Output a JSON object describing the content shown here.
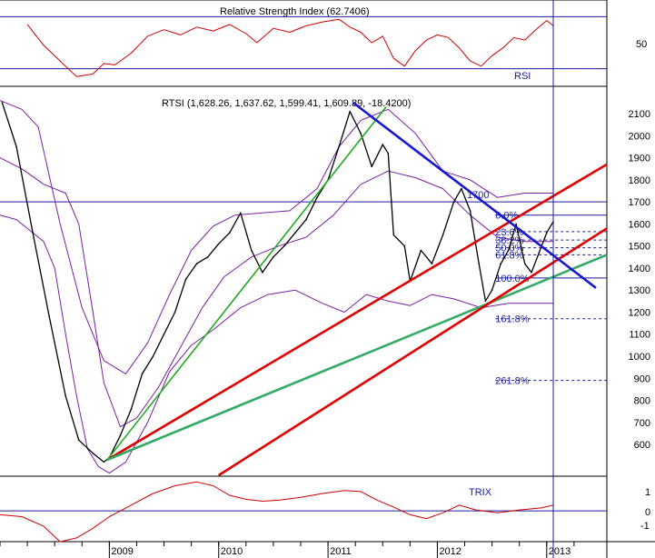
{
  "chart_data": {
    "type": "line",
    "rsi_panel": {
      "title": "Relative Strength Index (62.7406)",
      "label": "RSI",
      "ticks": [
        {
          "value": 50,
          "label": "50"
        }
      ],
      "levels": [
        70,
        30
      ],
      "ylim": [
        20,
        80
      ],
      "series": [
        {
          "x": 2008.25,
          "y": 64
        },
        {
          "x": 2008.4,
          "y": 48
        },
        {
          "x": 2008.55,
          "y": 36
        },
        {
          "x": 2008.7,
          "y": 24
        },
        {
          "x": 2008.85,
          "y": 26
        },
        {
          "x": 2008.95,
          "y": 34
        },
        {
          "x": 2009.05,
          "y": 33
        },
        {
          "x": 2009.2,
          "y": 42
        },
        {
          "x": 2009.35,
          "y": 55
        },
        {
          "x": 2009.5,
          "y": 60
        },
        {
          "x": 2009.65,
          "y": 56
        },
        {
          "x": 2009.8,
          "y": 62
        },
        {
          "x": 2009.95,
          "y": 59
        },
        {
          "x": 2010.1,
          "y": 64
        },
        {
          "x": 2010.25,
          "y": 57
        },
        {
          "x": 2010.35,
          "y": 50
        },
        {
          "x": 2010.5,
          "y": 61
        },
        {
          "x": 2010.65,
          "y": 58
        },
        {
          "x": 2010.8,
          "y": 63
        },
        {
          "x": 2010.95,
          "y": 66
        },
        {
          "x": 2011.1,
          "y": 68
        },
        {
          "x": 2011.2,
          "y": 62
        },
        {
          "x": 2011.3,
          "y": 58
        },
        {
          "x": 2011.4,
          "y": 50
        },
        {
          "x": 2011.5,
          "y": 55
        },
        {
          "x": 2011.6,
          "y": 38
        },
        {
          "x": 2011.7,
          "y": 32
        },
        {
          "x": 2011.8,
          "y": 44
        },
        {
          "x": 2011.9,
          "y": 52
        },
        {
          "x": 2012.0,
          "y": 56
        },
        {
          "x": 2012.1,
          "y": 54
        },
        {
          "x": 2012.2,
          "y": 46
        },
        {
          "x": 2012.3,
          "y": 36
        },
        {
          "x": 2012.4,
          "y": 32
        },
        {
          "x": 2012.5,
          "y": 40
        },
        {
          "x": 2012.6,
          "y": 46
        },
        {
          "x": 2012.7,
          "y": 54
        },
        {
          "x": 2012.8,
          "y": 52
        },
        {
          "x": 2012.9,
          "y": 60
        },
        {
          "x": 2013.0,
          "y": 67
        },
        {
          "x": 2013.06,
          "y": 63
        }
      ]
    },
    "price_panel": {
      "label": "RTSI (1,628.26, 1,637.62, 1,599.41, 1,609.89, -18.4200)",
      "ylim": [
        460,
        2220
      ],
      "yticks": [
        600,
        700,
        800,
        900,
        1000,
        1100,
        1200,
        1300,
        1400,
        1500,
        1600,
        1700,
        1800,
        1900,
        2000,
        2100
      ],
      "level_1700_label": "1700",
      "fib_levels": [
        {
          "label": "0.0%",
          "value": 1640
        },
        {
          "label": "23.6%",
          "value": 1565
        },
        {
          "label": "38.2%",
          "value": 1527
        },
        {
          "label": "50.0%",
          "value": 1492
        },
        {
          "label": "61.8%",
          "value": 1460
        },
        {
          "label": "100.0%",
          "value": 1355
        },
        {
          "label": "161.8%",
          "value": 1170
        },
        {
          "label": "261.8%",
          "value": 890
        }
      ],
      "price": [
        {
          "x": 2008.02,
          "y": 2150
        },
        {
          "x": 2008.15,
          "y": 1950
        },
        {
          "x": 2008.3,
          "y": 1560
        },
        {
          "x": 2008.45,
          "y": 1180
        },
        {
          "x": 2008.6,
          "y": 820
        },
        {
          "x": 2008.72,
          "y": 620
        },
        {
          "x": 2008.85,
          "y": 560
        },
        {
          "x": 2008.95,
          "y": 520
        },
        {
          "x": 2009.0,
          "y": 540
        },
        {
          "x": 2009.1,
          "y": 640
        },
        {
          "x": 2009.2,
          "y": 760
        },
        {
          "x": 2009.3,
          "y": 920
        },
        {
          "x": 2009.4,
          "y": 1000
        },
        {
          "x": 2009.5,
          "y": 1100
        },
        {
          "x": 2009.6,
          "y": 1200
        },
        {
          "x": 2009.7,
          "y": 1350
        },
        {
          "x": 2009.8,
          "y": 1420
        },
        {
          "x": 2009.9,
          "y": 1450
        },
        {
          "x": 2010.0,
          "y": 1510
        },
        {
          "x": 2010.1,
          "y": 1560
        },
        {
          "x": 2010.2,
          "y": 1650
        },
        {
          "x": 2010.3,
          "y": 1480
        },
        {
          "x": 2010.4,
          "y": 1380
        },
        {
          "x": 2010.5,
          "y": 1450
        },
        {
          "x": 2010.6,
          "y": 1500
        },
        {
          "x": 2010.7,
          "y": 1560
        },
        {
          "x": 2010.8,
          "y": 1620
        },
        {
          "x": 2010.9,
          "y": 1720
        },
        {
          "x": 2011.0,
          "y": 1800
        },
        {
          "x": 2011.1,
          "y": 1950
        },
        {
          "x": 2011.2,
          "y": 2110
        },
        {
          "x": 2011.3,
          "y": 2010
        },
        {
          "x": 2011.4,
          "y": 1860
        },
        {
          "x": 2011.5,
          "y": 1960
        },
        {
          "x": 2011.55,
          "y": 1920
        },
        {
          "x": 2011.6,
          "y": 1550
        },
        {
          "x": 2011.7,
          "y": 1500
        },
        {
          "x": 2011.75,
          "y": 1340
        },
        {
          "x": 2011.85,
          "y": 1480
        },
        {
          "x": 2011.95,
          "y": 1420
        },
        {
          "x": 2012.05,
          "y": 1550
        },
        {
          "x": 2012.15,
          "y": 1700
        },
        {
          "x": 2012.22,
          "y": 1760
        },
        {
          "x": 2012.3,
          "y": 1660
        },
        {
          "x": 2012.38,
          "y": 1420
        },
        {
          "x": 2012.44,
          "y": 1250
        },
        {
          "x": 2012.5,
          "y": 1300
        },
        {
          "x": 2012.58,
          "y": 1420
        },
        {
          "x": 2012.65,
          "y": 1480
        },
        {
          "x": 2012.72,
          "y": 1600
        },
        {
          "x": 2012.8,
          "y": 1420
        },
        {
          "x": 2012.86,
          "y": 1380
        },
        {
          "x": 2012.93,
          "y": 1470
        },
        {
          "x": 2013.0,
          "y": 1560
        },
        {
          "x": 2013.06,
          "y": 1610
        }
      ],
      "upper_band": [
        {
          "x": 2008.0,
          "y": 2160
        },
        {
          "x": 2008.2,
          "y": 2120
        },
        {
          "x": 2008.35,
          "y": 2040
        },
        {
          "x": 2008.55,
          "y": 1600
        },
        {
          "x": 2008.75,
          "y": 1220
        },
        {
          "x": 2008.95,
          "y": 980
        },
        {
          "x": 2009.15,
          "y": 920
        },
        {
          "x": 2009.35,
          "y": 1060
        },
        {
          "x": 2009.55,
          "y": 1280
        },
        {
          "x": 2009.75,
          "y": 1480
        },
        {
          "x": 2009.95,
          "y": 1590
        },
        {
          "x": 2010.15,
          "y": 1640
        },
        {
          "x": 2010.4,
          "y": 1650
        },
        {
          "x": 2010.65,
          "y": 1660
        },
        {
          "x": 2010.9,
          "y": 1760
        },
        {
          "x": 2011.1,
          "y": 1950
        },
        {
          "x": 2011.3,
          "y": 2070
        },
        {
          "x": 2011.55,
          "y": 2120
        },
        {
          "x": 2011.8,
          "y": 2010
        },
        {
          "x": 2012.05,
          "y": 1840
        },
        {
          "x": 2012.3,
          "y": 1800
        },
        {
          "x": 2012.55,
          "y": 1720
        },
        {
          "x": 2012.8,
          "y": 1740
        },
        {
          "x": 2013.06,
          "y": 1740
        }
      ],
      "middle_band": [
        {
          "x": 2008.0,
          "y": 1900
        },
        {
          "x": 2008.2,
          "y": 1850
        },
        {
          "x": 2008.4,
          "y": 1780
        },
        {
          "x": 2008.6,
          "y": 1740
        },
        {
          "x": 2008.72,
          "y": 1600
        },
        {
          "x": 2008.85,
          "y": 1200
        },
        {
          "x": 2008.95,
          "y": 880
        },
        {
          "x": 2009.1,
          "y": 680
        },
        {
          "x": 2009.25,
          "y": 720
        },
        {
          "x": 2009.45,
          "y": 860
        },
        {
          "x": 2009.65,
          "y": 1040
        },
        {
          "x": 2009.85,
          "y": 1220
        },
        {
          "x": 2010.05,
          "y": 1360
        },
        {
          "x": 2010.3,
          "y": 1450
        },
        {
          "x": 2010.55,
          "y": 1500
        },
        {
          "x": 2010.8,
          "y": 1540
        },
        {
          "x": 2011.05,
          "y": 1640
        },
        {
          "x": 2011.3,
          "y": 1780
        },
        {
          "x": 2011.55,
          "y": 1840
        },
        {
          "x": 2011.8,
          "y": 1810
        },
        {
          "x": 2012.05,
          "y": 1760
        },
        {
          "x": 2012.3,
          "y": 1640
        },
        {
          "x": 2012.55,
          "y": 1540
        },
        {
          "x": 2012.8,
          "y": 1520
        },
        {
          "x": 2013.06,
          "y": 1520
        }
      ],
      "lower_band": [
        {
          "x": 2008.0,
          "y": 1640
        },
        {
          "x": 2008.15,
          "y": 1620
        },
        {
          "x": 2008.3,
          "y": 1560
        },
        {
          "x": 2008.4,
          "y": 1520
        },
        {
          "x": 2008.5,
          "y": 1400
        },
        {
          "x": 2008.6,
          "y": 1100
        },
        {
          "x": 2008.7,
          "y": 820
        },
        {
          "x": 2008.8,
          "y": 580
        },
        {
          "x": 2008.9,
          "y": 500
        },
        {
          "x": 2009.0,
          "y": 470
        },
        {
          "x": 2009.15,
          "y": 520
        },
        {
          "x": 2009.35,
          "y": 700
        },
        {
          "x": 2009.55,
          "y": 930
        },
        {
          "x": 2009.75,
          "y": 1050
        },
        {
          "x": 2009.95,
          "y": 1120
        },
        {
          "x": 2010.2,
          "y": 1220
        },
        {
          "x": 2010.45,
          "y": 1280
        },
        {
          "x": 2010.7,
          "y": 1300
        },
        {
          "x": 2010.95,
          "y": 1240
        },
        {
          "x": 2011.15,
          "y": 1200
        },
        {
          "x": 2011.35,
          "y": 1280
        },
        {
          "x": 2011.55,
          "y": 1250
        },
        {
          "x": 2011.75,
          "y": 1230
        },
        {
          "x": 2011.95,
          "y": 1280
        },
        {
          "x": 2012.15,
          "y": 1260
        },
        {
          "x": 2012.4,
          "y": 1220
        },
        {
          "x": 2012.65,
          "y": 1240
        },
        {
          "x": 2012.9,
          "y": 1240
        },
        {
          "x": 2013.06,
          "y": 1240
        }
      ],
      "trendlines": [
        {
          "color": "#22aa22",
          "width": 1.6,
          "points": [
            {
              "x": 2008.98,
              "y": 530
            },
            {
              "x": 2011.53,
              "y": 2130
            }
          ]
        },
        {
          "color": "#e00000",
          "width": 2.6,
          "points": [
            {
              "x": 2008.98,
              "y": 530
            },
            {
              "x": 2013.55,
              "y": 1870
            }
          ]
        },
        {
          "color": "#33aa66",
          "width": 2.6,
          "points": [
            {
              "x": 2008.98,
              "y": 530
            },
            {
              "x": 2013.55,
              "y": 1460
            }
          ]
        },
        {
          "color": "#e00000",
          "width": 2.6,
          "points": [
            {
              "x": 2010.0,
              "y": 460
            },
            {
              "x": 2013.55,
              "y": 1580
            }
          ]
        },
        {
          "color": "#1818d0",
          "width": 2.6,
          "points": [
            {
              "x": 2011.23,
              "y": 2150
            },
            {
              "x": 2013.45,
              "y": 1310
            }
          ]
        }
      ]
    },
    "trix_panel": {
      "label": "TRIX",
      "ticks": [
        {
          "value": 1,
          "label": "1"
        },
        {
          "value": 0,
          "label": "0"
        },
        {
          "value": -1,
          "label": "-1"
        }
      ],
      "ylim": [
        -1.5,
        1.7
      ],
      "series": [
        {
          "x": 2008.0,
          "y": -0.2
        },
        {
          "x": 2008.2,
          "y": -0.3
        },
        {
          "x": 2008.4,
          "y": -0.8
        },
        {
          "x": 2008.55,
          "y": -1.6
        },
        {
          "x": 2008.7,
          "y": -1.4
        },
        {
          "x": 2008.85,
          "y": -0.9
        },
        {
          "x": 2009.0,
          "y": -0.3
        },
        {
          "x": 2009.2,
          "y": 0.3
        },
        {
          "x": 2009.4,
          "y": 0.9
        },
        {
          "x": 2009.6,
          "y": 1.3
        },
        {
          "x": 2009.8,
          "y": 1.5
        },
        {
          "x": 2009.95,
          "y": 1.3
        },
        {
          "x": 2010.1,
          "y": 0.8
        },
        {
          "x": 2010.25,
          "y": 0.6
        },
        {
          "x": 2010.4,
          "y": 0.5
        },
        {
          "x": 2010.55,
          "y": 0.55
        },
        {
          "x": 2010.75,
          "y": 0.7
        },
        {
          "x": 2010.95,
          "y": 0.9
        },
        {
          "x": 2011.15,
          "y": 1.05
        },
        {
          "x": 2011.3,
          "y": 1.0
        },
        {
          "x": 2011.45,
          "y": 0.55
        },
        {
          "x": 2011.6,
          "y": 0.2
        },
        {
          "x": 2011.75,
          "y": -0.2
        },
        {
          "x": 2011.9,
          "y": -0.4
        },
        {
          "x": 2012.05,
          "y": -0.1
        },
        {
          "x": 2012.2,
          "y": 0.3
        },
        {
          "x": 2012.35,
          "y": 0.05
        },
        {
          "x": 2012.55,
          "y": -0.1
        },
        {
          "x": 2012.75,
          "y": 0.05
        },
        {
          "x": 2012.95,
          "y": 0.15
        },
        {
          "x": 2013.06,
          "y": 0.3
        }
      ]
    },
    "x_axis": {
      "range": [
        2008.0,
        2013.55
      ],
      "ticks": [
        {
          "x": 2009,
          "label": "2009"
        },
        {
          "x": 2010,
          "label": "2010"
        },
        {
          "x": 2011,
          "label": "2011"
        },
        {
          "x": 2012,
          "label": "2012"
        },
        {
          "x": 2013,
          "label": "2013"
        }
      ],
      "current_marker_x": 2013.06
    },
    "colors": {
      "price": "#000000",
      "rsi": "#cc0000",
      "trix": "#cc0000",
      "bands": "#7a1fa0",
      "reference_lines": "#1a1aa0",
      "fib": "#1a1aa0"
    }
  }
}
